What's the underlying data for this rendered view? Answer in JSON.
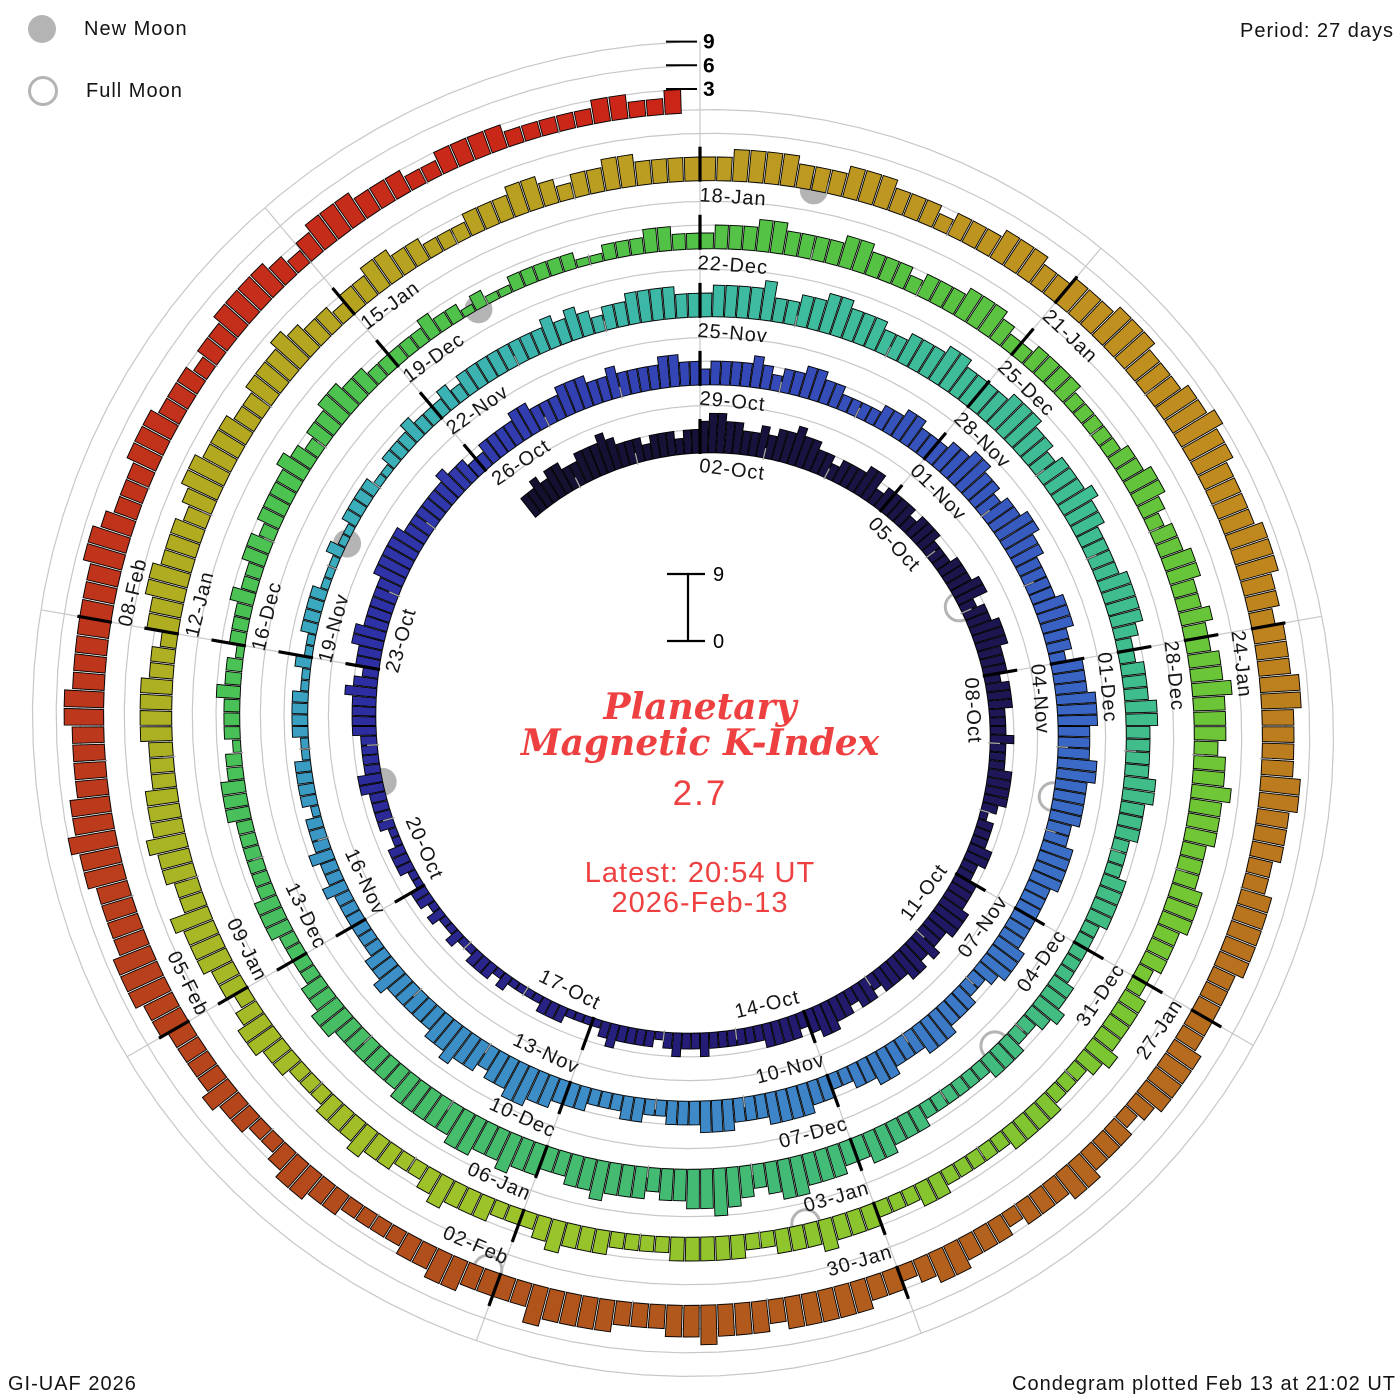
{
  "header": {
    "period_label": "Period: 27 days"
  },
  "legend": {
    "new_moon_label": "New Moon",
    "full_moon_label": "Full Moon"
  },
  "footer": {
    "left": "GI-UAF 2026",
    "right": "Condegram plotted Feb 13 at 21:02 UT"
  },
  "center": {
    "title_line1": "Planetary",
    "title_line2": "Magnetic K-Index",
    "current_value": "2.7",
    "latest_line1": "Latest: 20:54 UT",
    "latest_line2": "2026-Feb-13"
  },
  "colors": {
    "accent_red": "#ee4040",
    "grid_gray": "#c7c7c7",
    "tick_gray": "#a8a8a8",
    "moon_gray": "#b4b4b4",
    "bar_outline": "#000000",
    "text_black": "#141414"
  },
  "chart_data": {
    "type": "bar",
    "layout": "polar_spiral_clockwise",
    "title": "Planetary Magnetic K-Index",
    "period_days": 27,
    "hours_per_sample": 3,
    "kmax": 9,
    "ylim": [
      0,
      9
    ],
    "grid_k": [
      0,
      3,
      6,
      9
    ],
    "scale_ticks": [
      "3",
      "6",
      "9"
    ],
    "center_scale": {
      "top": "9",
      "bottom": "0"
    },
    "latest_k": 2.7,
    "date_labels": [
      "02-Oct",
      "05-Oct",
      "08-Oct",
      "11-Oct",
      "14-Oct",
      "17-Oct",
      "20-Oct",
      "23-Oct",
      "26-Oct",
      "29-Oct",
      "01-Nov",
      "04-Nov",
      "07-Nov",
      "10-Nov",
      "13-Nov",
      "16-Nov",
      "19-Nov",
      "22-Nov",
      "25-Nov",
      "28-Nov",
      "01-Dec",
      "04-Dec",
      "07-Dec",
      "10-Dec",
      "13-Dec",
      "16-Dec",
      "19-Dec",
      "22-Dec",
      "25-Dec",
      "28-Dec",
      "31-Dec",
      "03-Jan",
      "06-Jan",
      "09-Jan",
      "12-Jan",
      "15-Jan",
      "18-Jan",
      "21-Jan",
      "24-Jan",
      "27-Jan",
      "30-Jan",
      "02-Feb",
      "05-Feb",
      "08-Feb"
    ],
    "pre_samples": 23,
    "k_days": [
      "3343443",
      "34445433",
      "32333233",
      "45544334",
      "34454433",
      "23334423",
      "33323332",
      "22333442",
      "33444333",
      "23332223",
      "22233332",
      "12223322",
      "33344433",
      "43443332",
      "33233443",
      "23333222",
      "22232232",
      "12222321",
      "11122211",
      "11212221",
      "12112122",
      "11222112",
      "22233222",
      "23333432",
      "33443333",
      "34444433",
      "33334332",
      "23333443",
      "33444334",
      "33334433",
      "23333432",
      "33443322",
      "22334433",
      "34455443",
      "44554433",
      "33444332",
      "44455544",
      "45544443",
      "34444333",
      "33344432",
      "23334443",
      "33443322",
      "33444433",
      "34443332",
      "23322233",
      "34455443",
      "44544333",
      "33433222",
      "22232232",
      "22122221",
      "12222112",
      "11222211",
      "12112222",
      "11222322",
      "23233333",
      "33343432",
      "33444433",
      "34444533",
      "44554443",
      "34445544",
      "44555443",
      "44454433",
      "33444432",
      "23334433",
      "33443332",
      "22333322",
      "22233432",
      "23332222",
      "22333443",
      "34445543",
      "45655443",
      "44454433",
      "44544554",
      "44443333",
      "33443322",
      "22333222",
      "22233322",
      "12223221",
      "22232233",
      "23333432",
      "33443322",
      "22232212",
      "11222221",
      "12223322",
      "23334433",
      "33443332",
      "33344432",
      "23333222",
      "22334432",
      "33443343",
      "34454443",
      "44544433",
      "34443332",
      "23333432",
      "22333322",
      "22233222",
      "33343332",
      "23333322",
      "22333432",
      "22333432",
      "23343332",
      "22334432",
      "33444533",
      "44544433",
      "34444332",
      "44554443",
      "45544433",
      "44454332",
      "33443322",
      "23334432",
      "33443333",
      "33444433",
      "34443332",
      "33344433",
      "44455544",
      "45565544",
      "44555443",
      "44455444",
      "45544433",
      "44444333",
      "33444432",
      "33344333",
      "23334432",
      "33444443",
      "44454433",
      "34444533",
      "33443322",
      "22334432",
      "23343333",
      "44555444",
      "45565544",
      "44554444",
      "44455433",
      "34443332",
      "33444432",
      "34443332",
      "23333222",
      "2233223"
    ],
    "new_moon_days": [
      19.5,
      49.3,
      78.9,
      108.9
    ],
    "full_moon_days": [
      4.9,
      34.6,
      64.3,
      93.6,
      123.1
    ],
    "color_stops": [
      [
        -3,
        "#14102e"
      ],
      [
        5,
        "#1b164e"
      ],
      [
        13,
        "#241c74"
      ],
      [
        21,
        "#2e2fa4"
      ],
      [
        27,
        "#3446b6"
      ],
      [
        34,
        "#3a68c6"
      ],
      [
        41,
        "#3e8cc8"
      ],
      [
        45,
        "#3a90c6"
      ],
      [
        49,
        "#3aacbe"
      ],
      [
        55,
        "#3ebc9e"
      ],
      [
        61,
        "#40bd8a"
      ],
      [
        68,
        "#44bb72"
      ],
      [
        75,
        "#4ac254"
      ],
      [
        82,
        "#54c244"
      ],
      [
        89,
        "#72c634"
      ],
      [
        96,
        "#9cc42a"
      ],
      [
        103,
        "#b2aa20"
      ],
      [
        108,
        "#bc9c22"
      ],
      [
        113,
        "#c08a1e"
      ],
      [
        118,
        "#b4661e"
      ],
      [
        123,
        "#b0521c"
      ],
      [
        128,
        "#bc381c"
      ],
      [
        135,
        "#cc2418"
      ]
    ]
  }
}
